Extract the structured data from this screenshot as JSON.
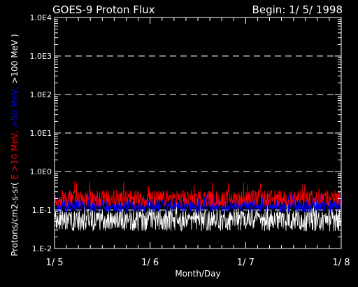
{
  "chart_data": {
    "type": "line",
    "title": "GOES-9 Proton Flux",
    "begin_label": "Begin: 1/ 5/ 1998",
    "xlabel": "Month/Day",
    "ylabel_prefix": "Protons/cm2-s-sr(",
    "ylabel_parts": [
      {
        "text": "E >10 MeV, ",
        "color": "#ff0000"
      },
      {
        "text": ">50 MeV, ",
        "color": "#0000ff"
      },
      {
        "text": ">100 MeV )",
        "color": "#ffffff"
      }
    ],
    "y_scale": "log",
    "ylim": [
      0.01,
      10000
    ],
    "y_ticks": [
      {
        "value": 0.01,
        "label": "1.E-2"
      },
      {
        "value": 0.1,
        "label": "1.E-1"
      },
      {
        "value": 1,
        "label": "1.0E0"
      },
      {
        "value": 10,
        "label": "1.0E1"
      },
      {
        "value": 100,
        "label": "1.0E2"
      },
      {
        "value": 1000,
        "label": "1.0E3"
      },
      {
        "value": 10000,
        "label": "1.0E4"
      }
    ],
    "dashed_gridlines": [
      0.1,
      1,
      10,
      100,
      1000
    ],
    "xlim": [
      5,
      8
    ],
    "x_ticks": [
      {
        "value": 5,
        "label": "1/ 5"
      },
      {
        "value": 6,
        "label": "1/ 6"
      },
      {
        "value": 7,
        "label": "1/ 7"
      },
      {
        "value": 8,
        "label": "1/ 8"
      }
    ],
    "series": [
      {
        "name": "E >10 MeV",
        "color": "#ff0000",
        "median": 0.2,
        "min": 0.12,
        "max": 0.6
      },
      {
        "name": ">50 MeV",
        "color": "#0000ff",
        "median": 0.13,
        "min": 0.085,
        "max": 0.3
      },
      {
        "name": ">100 MeV",
        "color": "#ffffff",
        "median": 0.06,
        "min": 0.028,
        "max": 0.2
      }
    ]
  }
}
